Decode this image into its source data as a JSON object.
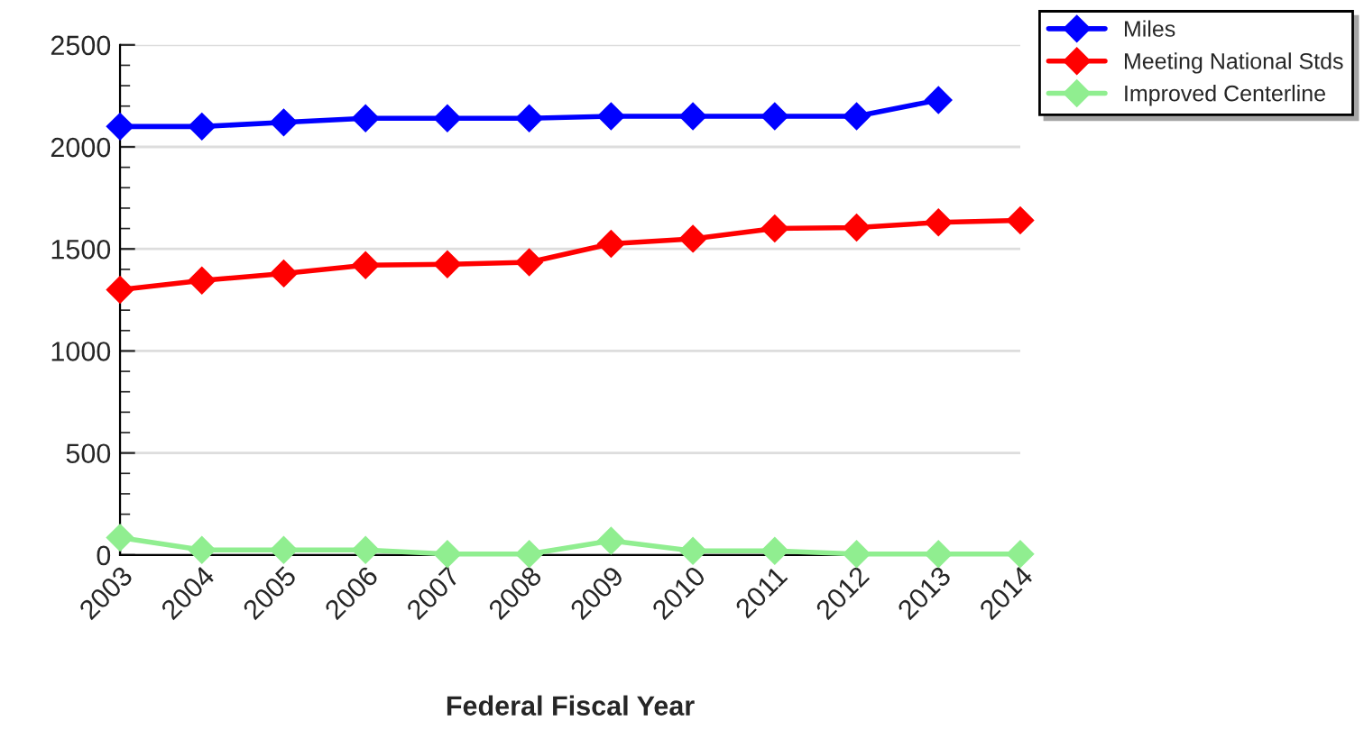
{
  "chart_data": {
    "type": "line",
    "xlabel": "Federal Fiscal Year",
    "categories": [
      "2003",
      "2004",
      "2005",
      "2006",
      "2007",
      "2008",
      "2009",
      "2010",
      "2011",
      "2012",
      "2013",
      "2014"
    ],
    "series": [
      {
        "name": "Miles",
        "color": "#0000ff",
        "values": [
          2100,
          2100,
          2120,
          2140,
          2140,
          2140,
          2150,
          2150,
          2150,
          2150,
          2230,
          null
        ]
      },
      {
        "name": "Meeting National Stds",
        "color": "#ff0000",
        "values": [
          1300,
          1345,
          1380,
          1420,
          1425,
          1435,
          1525,
          1550,
          1600,
          1605,
          1630,
          1640
        ]
      },
      {
        "name": "Improved Centerline",
        "color": "#90ee90",
        "values": [
          85,
          25,
          25,
          25,
          5,
          5,
          70,
          20,
          20,
          5,
          5,
          5
        ]
      }
    ],
    "ylim": [
      0,
      2500
    ],
    "yticks": [
      0,
      500,
      1000,
      1500,
      2000,
      2500
    ],
    "grid": "y",
    "legend": "top right",
    "marker": "diamond",
    "line_style": "solid"
  }
}
